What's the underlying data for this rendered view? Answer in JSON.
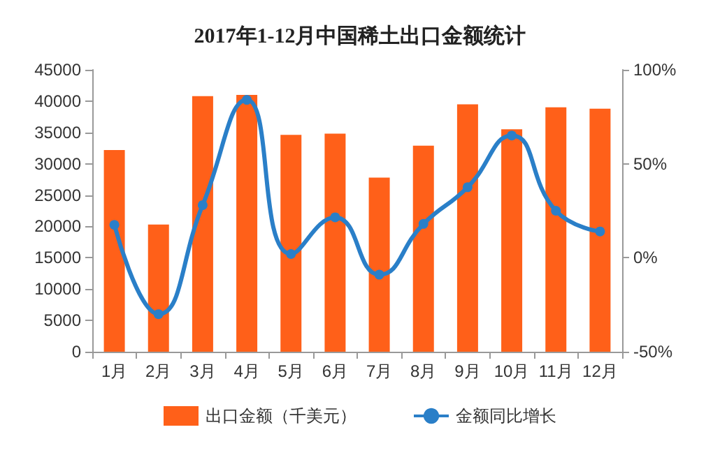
{
  "chart_data": {
    "type": "bar",
    "title": "2017年1-12月中国稀土出口金额统计",
    "categories": [
      "1月",
      "2月",
      "3月",
      "4月",
      "5月",
      "6月",
      "7月",
      "8月",
      "9月",
      "10月",
      "11月",
      "12月"
    ],
    "series": [
      {
        "name": "出口金额（千美元）",
        "color": "#ff6019",
        "values": [
          32200,
          20300,
          40800,
          41000,
          34600,
          34800,
          27800,
          32900,
          39500,
          35500,
          39000,
          38800
        ]
      },
      {
        "name": "金额同比增长",
        "type": "line",
        "axis": "y2",
        "color": "#2a7fc8",
        "marker": "circle",
        "values": [
          17.5,
          -30,
          28,
          84,
          2,
          21.5,
          -9,
          18,
          37.5,
          65,
          25,
          14
        ]
      }
    ],
    "ylim": [
      0,
      45000
    ],
    "yticks": [
      0,
      5000,
      10000,
      15000,
      20000,
      25000,
      30000,
      35000,
      40000,
      45000
    ],
    "y2lim": [
      -50,
      100
    ],
    "y2ticks": [
      {
        "value": -50,
        "label": "-50%"
      },
      {
        "value": 0,
        "label": "0%"
      },
      {
        "value": 50,
        "label": "50%"
      },
      {
        "value": 100,
        "label": "100%"
      }
    ],
    "grid": false,
    "legend": "bottom"
  }
}
